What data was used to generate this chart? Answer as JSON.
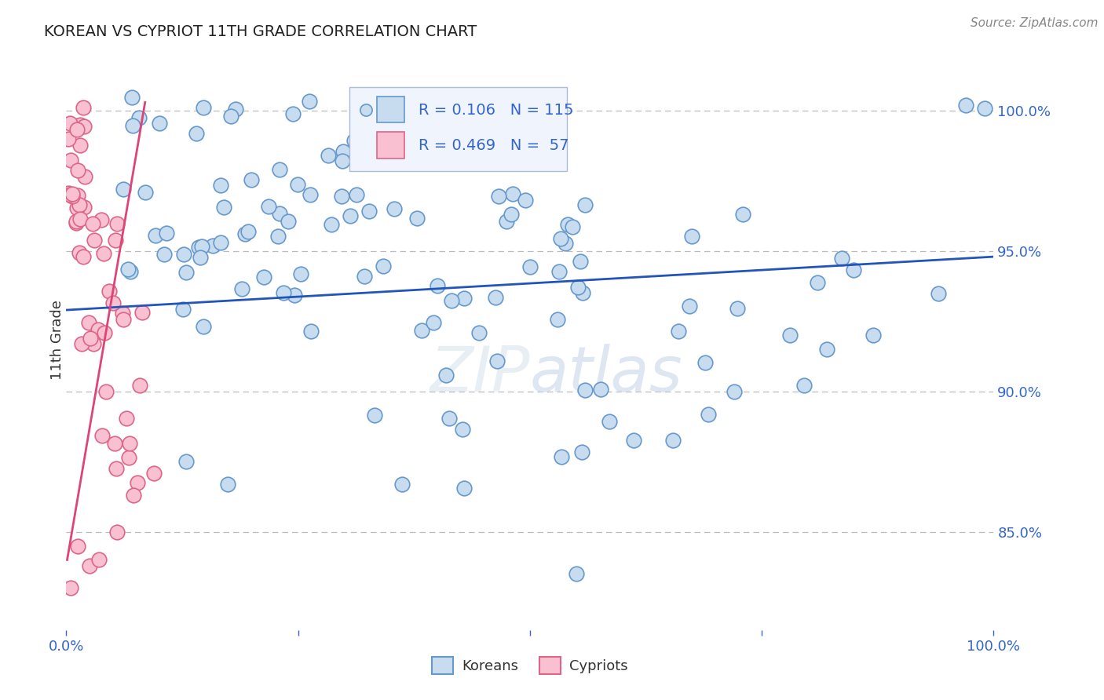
{
  "title": "KOREAN VS CYPRIOT 11TH GRADE CORRELATION CHART",
  "source": "Source: ZipAtlas.com",
  "ylabel": "11th Grade",
  "xmin": 0.0,
  "xmax": 1.0,
  "ymin": 0.815,
  "ymax": 1.022,
  "yticks": [
    0.85,
    0.9,
    0.95,
    1.0
  ],
  "ytick_labels": [
    "85.0%",
    "90.0%",
    "95.0%",
    "100.0%"
  ],
  "blue_scatter_color": "#c8dcf0",
  "blue_edge_color": "#6699cc",
  "pink_scatter_color": "#f8c0d0",
  "pink_edge_color": "#dd6688",
  "trend_blue_color": "#2255bb",
  "trend_pink_color": "#dd4477",
  "grid_color": "#bbbbbb",
  "label_color": "#3366cc",
  "legend_R_blue": "0.106",
  "legend_N_blue": "115",
  "legend_R_pink": "0.469",
  "legend_N_pink": " 57",
  "blue_trend_x0": 0.0,
  "blue_trend_y0": 0.929,
  "blue_trend_x1": 1.0,
  "blue_trend_y1": 0.948,
  "pink_trend_x0": 0.001,
  "pink_trend_y0": 0.84,
  "pink_trend_x1": 0.085,
  "pink_trend_y1": 1.003
}
